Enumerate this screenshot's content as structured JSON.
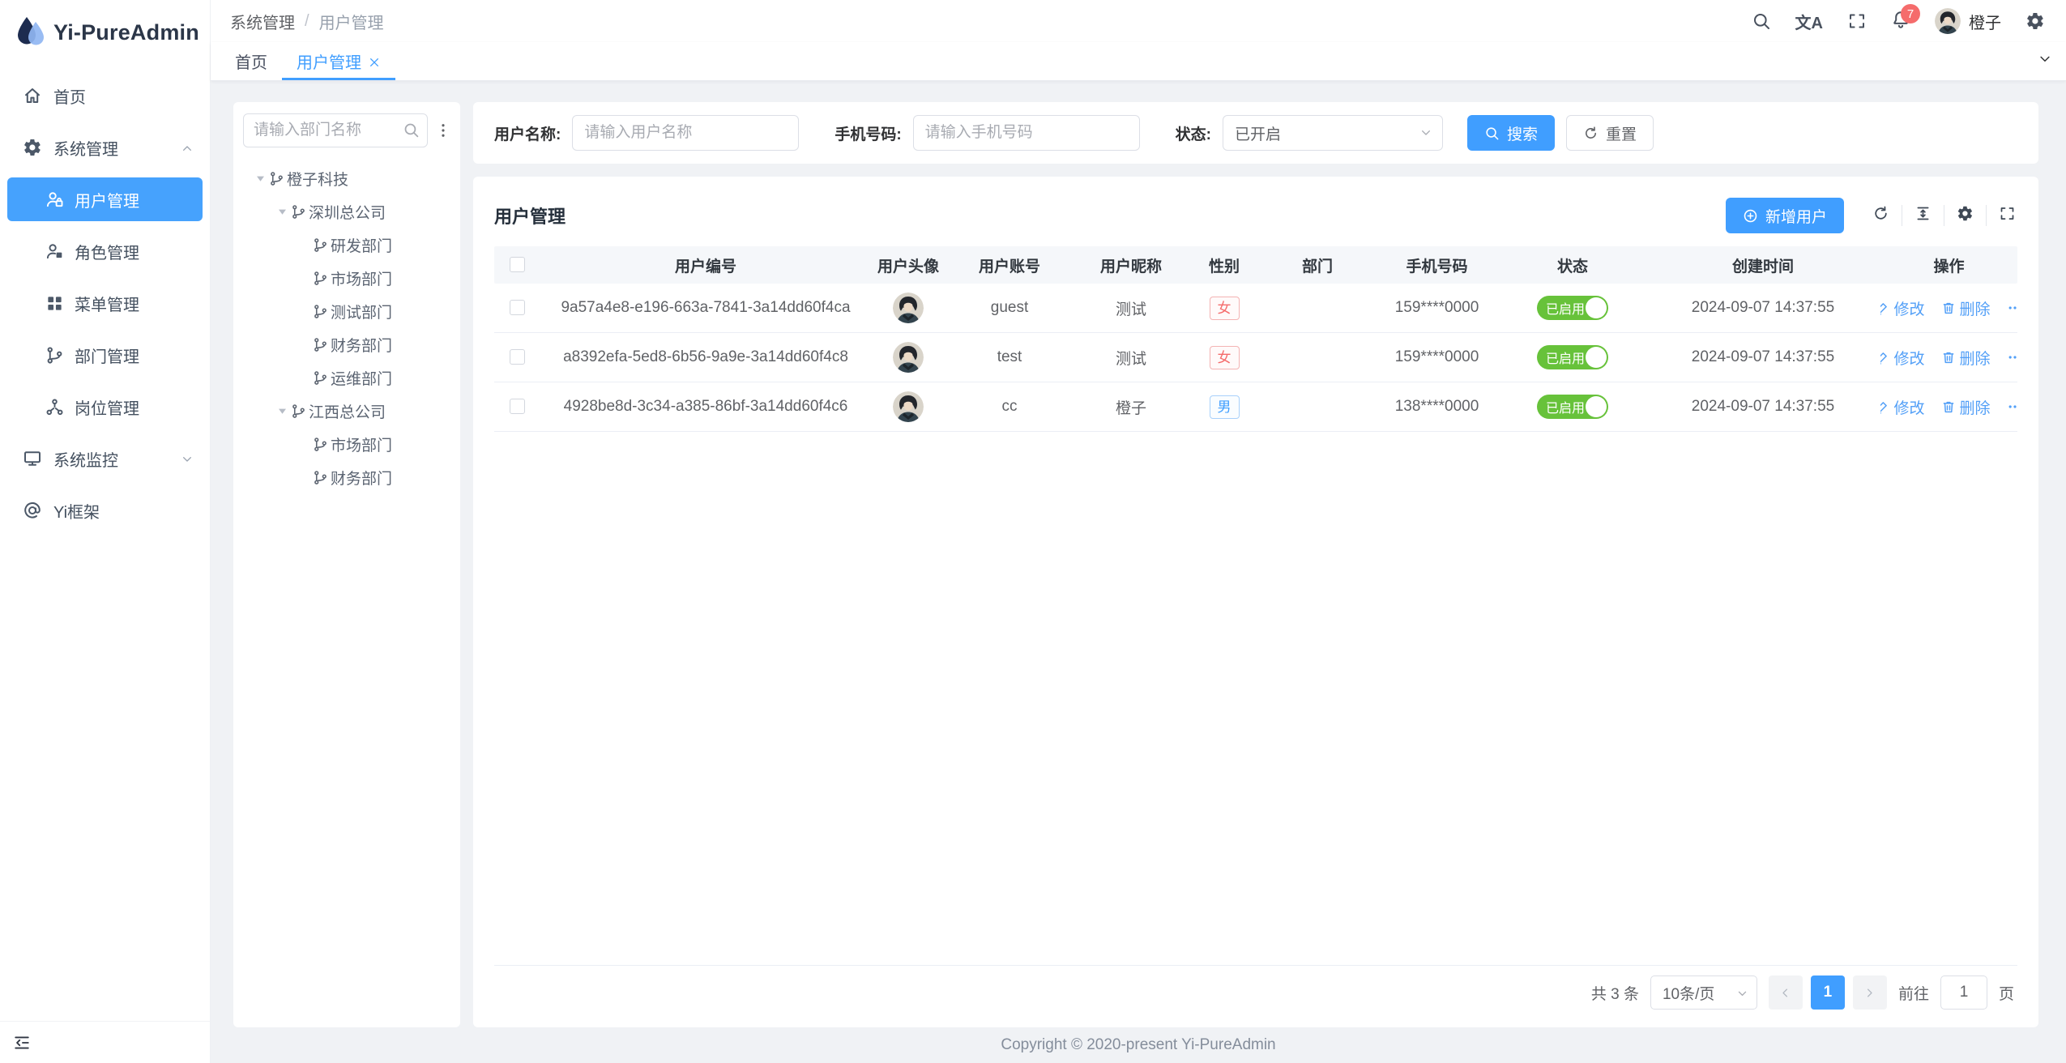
{
  "app": {
    "title": "Yi-PureAdmin",
    "copyright": "Copyright © 2020-present Yi-PureAdmin"
  },
  "colors": {
    "primary": "#409eff",
    "success": "#67c23a",
    "danger": "#f56c6c"
  },
  "header": {
    "breadcrumb": {
      "first": "系统管理",
      "separator": "/",
      "last": "用户管理"
    },
    "translate_glyph": "文A",
    "notification_count": "7",
    "username": "橙子"
  },
  "sidebar": {
    "items": {
      "home": {
        "label": "首页"
      },
      "system": {
        "label": "系统管理"
      },
      "monitor": {
        "label": "系统监控"
      },
      "framework": {
        "label": "Yi框架"
      }
    },
    "system_children": [
      {
        "label": "用户管理",
        "icon": "user-icon",
        "active": true
      },
      {
        "label": "角色管理",
        "icon": "role-icon",
        "active": false
      },
      {
        "label": "菜单管理",
        "icon": "menu-grid-icon",
        "active": false
      },
      {
        "label": "部门管理",
        "icon": "department-icon",
        "active": false
      },
      {
        "label": "岗位管理",
        "icon": "position-icon",
        "active": false
      }
    ]
  },
  "tabs": {
    "home": {
      "label": "首页"
    },
    "current": {
      "label": "用户管理"
    }
  },
  "tree_panel": {
    "search_placeholder": "请输入部门名称",
    "nodes": [
      {
        "label": "橙子科技",
        "level": 0,
        "expandable": true
      },
      {
        "label": "深圳总公司",
        "level": 1,
        "expandable": true
      },
      {
        "label": "研发部门",
        "level": 2,
        "expandable": false
      },
      {
        "label": "市场部门",
        "level": 2,
        "expandable": false
      },
      {
        "label": "测试部门",
        "level": 2,
        "expandable": false
      },
      {
        "label": "财务部门",
        "level": 2,
        "expandable": false
      },
      {
        "label": "运维部门",
        "level": 2,
        "expandable": false
      },
      {
        "label": "江西总公司",
        "level": 1,
        "expandable": true
      },
      {
        "label": "市场部门",
        "level": 2,
        "expandable": false
      },
      {
        "label": "财务部门",
        "level": 2,
        "expandable": false
      }
    ]
  },
  "filters": {
    "name_label": "用户名称:",
    "name_placeholder": "请输入用户名称",
    "phone_label": "手机号码:",
    "phone_placeholder": "请输入手机号码",
    "status_label": "状态:",
    "status_value": "已开启",
    "search_button": "搜索",
    "reset_button": "重置"
  },
  "table_card": {
    "title": "用户管理",
    "add_button": "新增用户",
    "columns": [
      "用户编号",
      "用户头像",
      "用户账号",
      "用户昵称",
      "性别",
      "部门",
      "手机号码",
      "状态",
      "创建时间",
      "操作"
    ],
    "row_actions": {
      "edit": "修改",
      "delete": "删除"
    },
    "users": [
      {
        "id": "9a57a4e8-e196-663a-7841-3a14dd60f4ca",
        "account": "guest",
        "nickname": "测试",
        "gender": "女",
        "department": "",
        "phone": "159****0000",
        "status": "已启用",
        "created": "2024-09-07 14:37:55"
      },
      {
        "id": "a8392efa-5ed8-6b56-9a9e-3a14dd60f4c8",
        "account": "test",
        "nickname": "测试",
        "gender": "女",
        "department": "",
        "phone": "159****0000",
        "status": "已启用",
        "created": "2024-09-07 14:37:55"
      },
      {
        "id": "4928be8d-3c34-a385-86bf-3a14dd60f4c6",
        "account": "cc",
        "nickname": "橙子",
        "gender": "男",
        "department": "",
        "phone": "138****0000",
        "status": "已启用",
        "created": "2024-09-07 14:37:55"
      }
    ]
  },
  "pagination": {
    "total_text": "共 3 条",
    "page_size": "10条/页",
    "current_page": "1",
    "goto_label": "前往",
    "goto_value": "1",
    "page_unit": "页"
  }
}
